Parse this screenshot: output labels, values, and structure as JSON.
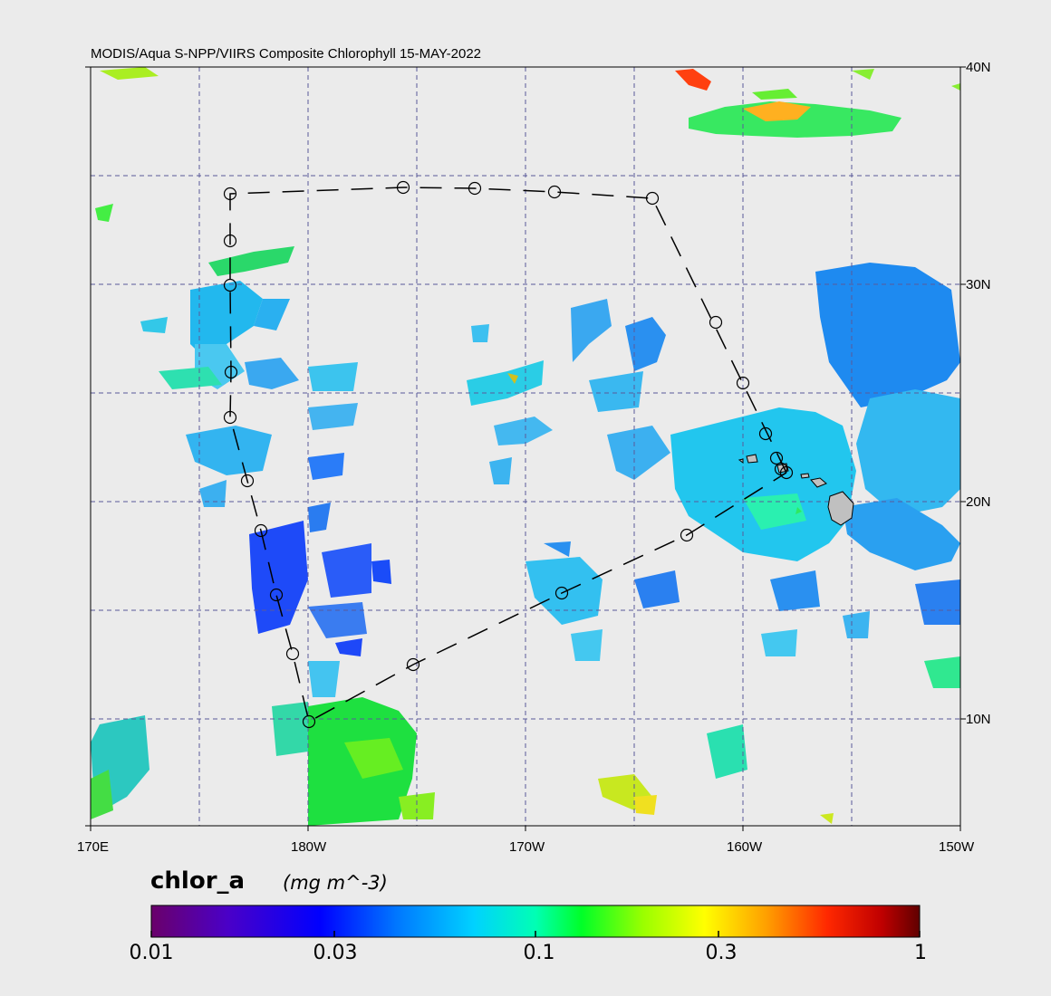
{
  "title": "MODIS/Aqua S-NPP/VIIRS Composite Chlorophyll 15-MAY-2022",
  "map": {
    "lat_labels": [
      "40N",
      "30N",
      "20N",
      "10N"
    ],
    "lon_labels": [
      "170E",
      "180W",
      "170W",
      "160W",
      "150W"
    ],
    "extent": {
      "lon_min": 170,
      "lon_max": 210,
      "lat_min": 5,
      "lat_max": 40
    },
    "land_color": "#c0c0c0",
    "background_color": "#ebebeb",
    "gridline_color": "#5a5a9a",
    "track_color": "#000000"
  },
  "colorbar": {
    "variable": "chlor_a",
    "units": "(mg m^-3)",
    "scale": "log",
    "range": [
      0.01,
      1
    ],
    "tick_labels": [
      "0.01",
      "0.03",
      "0.1",
      "0.3",
      "1"
    ],
    "tick_values": [
      0.01,
      0.03,
      0.1,
      0.3,
      1
    ]
  },
  "legend_colors": [
    "#6a006a",
    "#4a00c8",
    "#0000ff",
    "#0080ff",
    "#00c8ff",
    "#00ffc8",
    "#00ff40",
    "#a0ff00",
    "#ffff00",
    "#ffa000",
    "#ff3000",
    "#c00000",
    "#600000"
  ]
}
